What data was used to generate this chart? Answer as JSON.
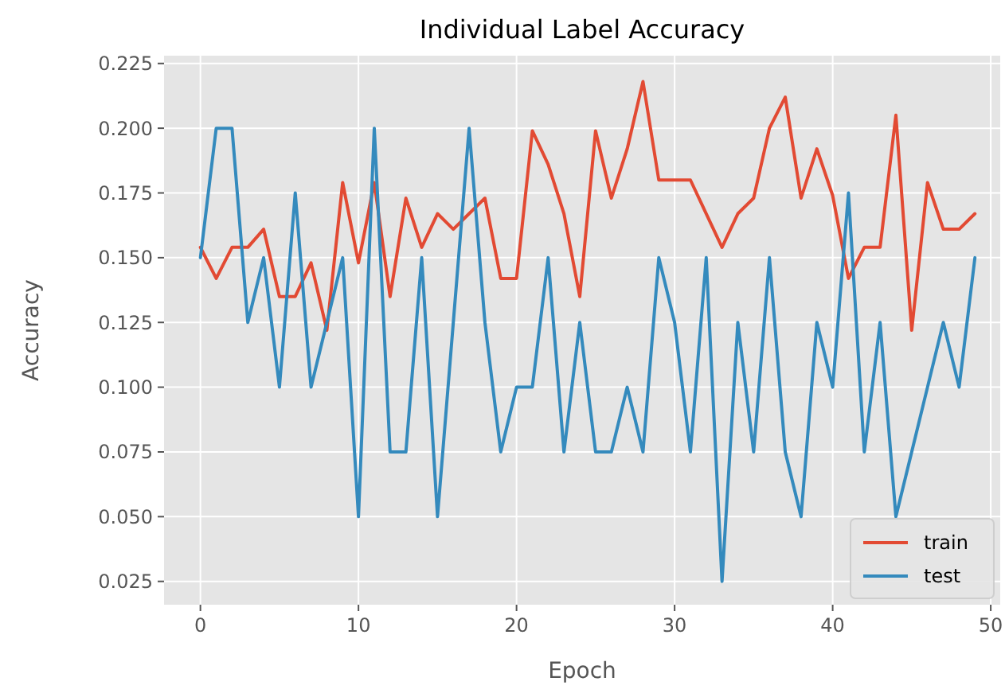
{
  "chart_data": {
    "type": "line",
    "title": "Individual Label Accuracy",
    "xlabel": "Epoch",
    "ylabel": "Accuracy",
    "x": [
      0,
      1,
      2,
      3,
      4,
      5,
      6,
      7,
      8,
      9,
      10,
      11,
      12,
      13,
      14,
      15,
      16,
      17,
      18,
      19,
      20,
      21,
      22,
      23,
      24,
      25,
      26,
      27,
      28,
      29,
      30,
      31,
      32,
      33,
      34,
      35,
      36,
      37,
      38,
      39,
      40,
      41,
      42,
      43,
      44,
      45,
      46,
      47,
      48,
      49
    ],
    "series": [
      {
        "name": "train",
        "color": "#e24a33",
        "values": [
          0.154,
          0.142,
          0.154,
          0.154,
          0.161,
          0.135,
          0.135,
          0.148,
          0.122,
          0.179,
          0.148,
          0.179,
          0.135,
          0.173,
          0.154,
          0.167,
          0.161,
          0.167,
          0.173,
          0.142,
          0.142,
          0.199,
          0.186,
          0.167,
          0.135,
          0.199,
          0.173,
          0.192,
          0.218,
          0.18,
          0.18,
          0.18,
          0.167,
          0.154,
          0.167,
          0.173,
          0.2,
          0.212,
          0.173,
          0.192,
          0.174,
          0.142,
          0.154,
          0.154,
          0.205,
          0.122,
          0.179,
          0.161,
          0.161,
          0.167
        ]
      },
      {
        "name": "test",
        "color": "#348abd",
        "values": [
          0.15,
          0.2,
          0.2,
          0.125,
          0.15,
          0.1,
          0.175,
          0.1,
          0.125,
          0.15,
          0.05,
          0.2,
          0.075,
          0.075,
          0.15,
          0.05,
          0.125,
          0.2,
          0.125,
          0.075,
          0.1,
          0.1,
          0.15,
          0.075,
          0.125,
          0.075,
          0.075,
          0.1,
          0.075,
          0.15,
          0.125,
          0.075,
          0.15,
          0.025,
          0.125,
          0.075,
          0.15,
          0.075,
          0.05,
          0.125,
          0.1,
          0.175,
          0.075,
          0.125,
          0.05,
          0.075,
          0.1,
          0.125,
          0.1,
          0.15
        ]
      }
    ],
    "xlim": [
      -2.3,
      50.6
    ],
    "xticks": [
      0,
      10,
      20,
      30,
      40,
      50
    ],
    "ylim": [
      0.016,
      0.228
    ],
    "yticks": [
      {
        "value": 0.025,
        "label": "0.025"
      },
      {
        "value": 0.05,
        "label": "0.050"
      },
      {
        "value": 0.075,
        "label": "0.075"
      },
      {
        "value": 0.1,
        "label": "0.100"
      },
      {
        "value": 0.125,
        "label": "0.125"
      },
      {
        "value": 0.15,
        "label": "0.150"
      },
      {
        "value": 0.175,
        "label": "0.175"
      },
      {
        "value": 0.2,
        "label": "0.200"
      },
      {
        "value": 0.225,
        "label": "0.225"
      }
    ],
    "grid": true,
    "legend": "bottom right",
    "marker": "none",
    "line_style": "solid"
  }
}
